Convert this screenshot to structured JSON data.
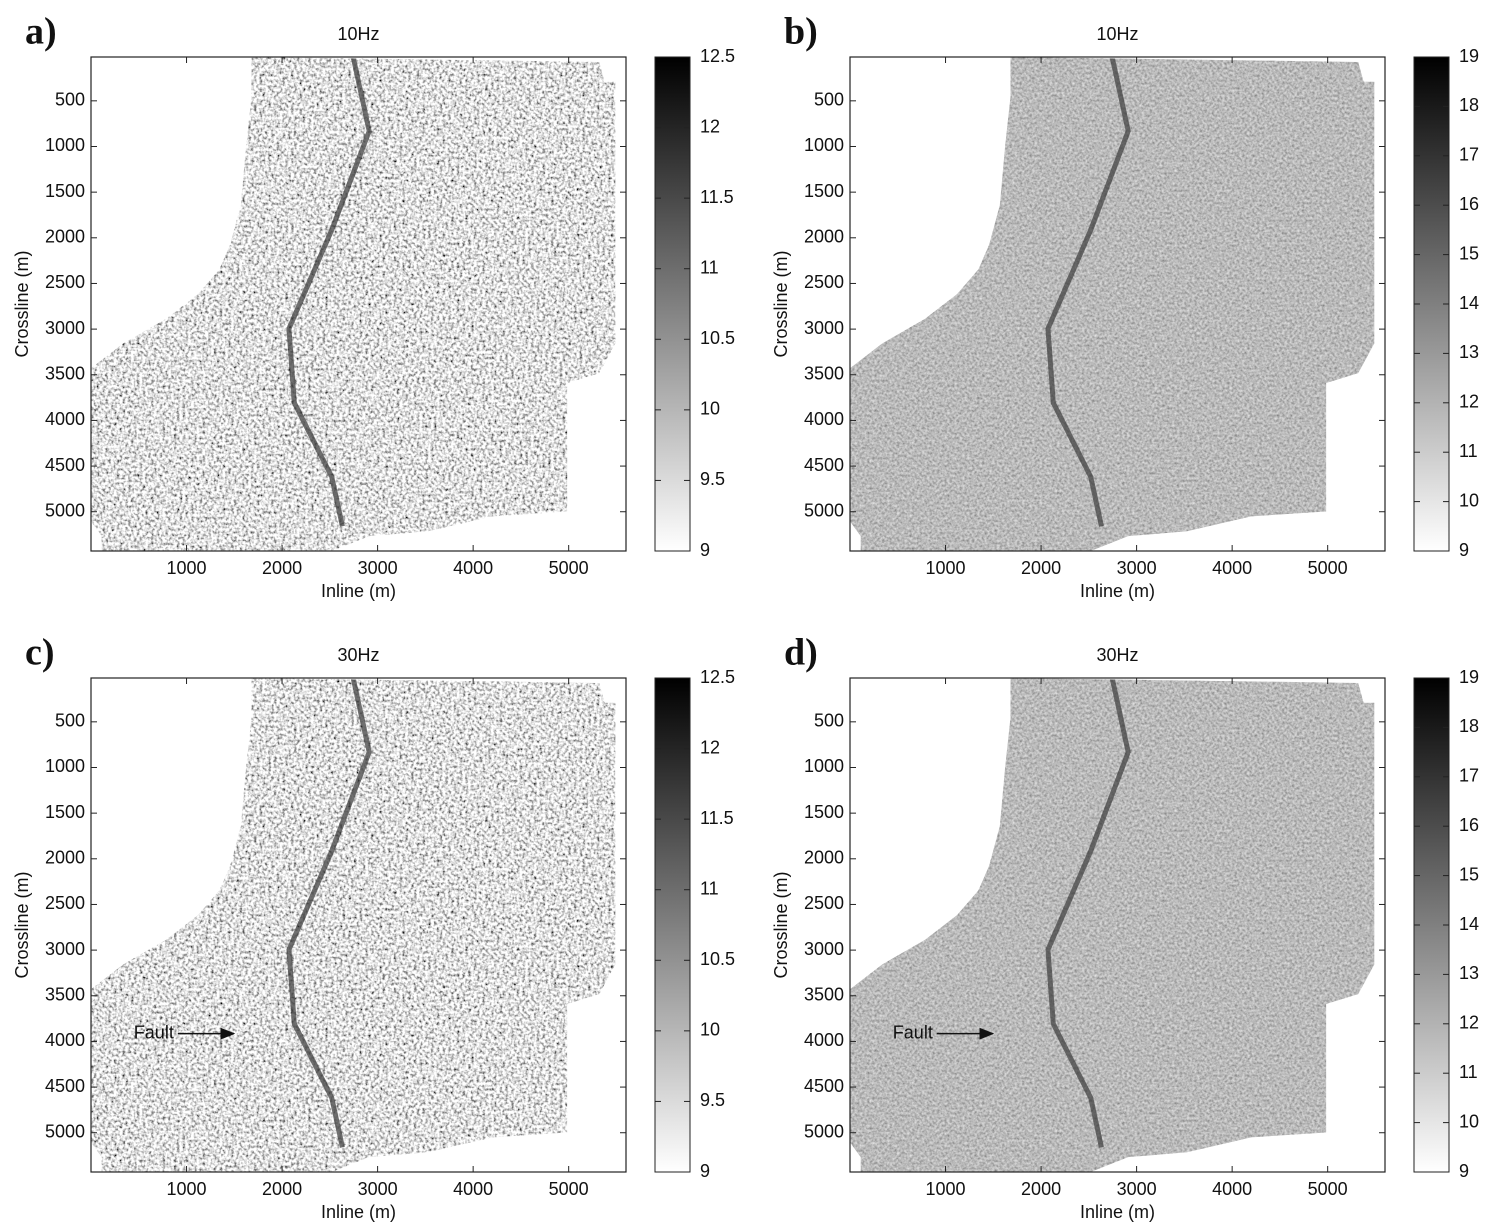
{
  "chart_data": [
    {
      "type": "heatmap",
      "panel_label": "a)",
      "title": "10Hz",
      "xlabel": "Inline (m)",
      "ylabel": "Crossline (m)",
      "xlim": [
        0,
        5600
      ],
      "xticks": [
        1000,
        2000,
        3000,
        4000,
        5000
      ],
      "ylim": [
        20,
        5430
      ],
      "yticks": [
        500,
        1000,
        1500,
        2000,
        2500,
        3000,
        3500,
        4000,
        4500,
        5000
      ],
      "yreverse": true,
      "colormap": "gray_r",
      "clim": [
        9,
        12.5
      ],
      "cticks": [
        9,
        9.5,
        10,
        10.5,
        11,
        11.5,
        12,
        12.5
      ]
    },
    {
      "type": "heatmap",
      "panel_label": "b)",
      "title": "10Hz",
      "xlabel": "Inline (m)",
      "ylabel": "Crossline (m)",
      "xlim": [
        0,
        5600
      ],
      "xticks": [
        1000,
        2000,
        3000,
        4000,
        5000
      ],
      "ylim": [
        20,
        5430
      ],
      "yticks": [
        500,
        1000,
        1500,
        2000,
        2500,
        3000,
        3500,
        4000,
        4500,
        5000
      ],
      "yreverse": true,
      "colormap": "gray_r",
      "clim": [
        9,
        19
      ],
      "cticks": [
        9,
        10,
        11,
        12,
        13,
        14,
        15,
        16,
        17,
        18,
        19
      ]
    },
    {
      "type": "heatmap",
      "panel_label": "c)",
      "title": "30Hz",
      "xlabel": "Inline (m)",
      "ylabel": "Crossline (m)",
      "xlim": [
        0,
        5600
      ],
      "xticks": [
        1000,
        2000,
        3000,
        4000,
        5000
      ],
      "ylim": [
        20,
        5430
      ],
      "yticks": [
        500,
        1000,
        1500,
        2000,
        2500,
        3000,
        3500,
        4000,
        4500,
        5000
      ],
      "yreverse": true,
      "colormap": "gray_r",
      "clim": [
        9,
        12.5
      ],
      "cticks": [
        9,
        9.5,
        10,
        10.5,
        11,
        11.5,
        12,
        12.5
      ],
      "annotation": "Fault"
    },
    {
      "type": "heatmap",
      "panel_label": "d)",
      "title": "30Hz",
      "xlabel": "Inline (m)",
      "ylabel": "Crossline (m)",
      "xlim": [
        0,
        5600
      ],
      "xticks": [
        1000,
        2000,
        3000,
        4000,
        5000
      ],
      "ylim": [
        20,
        5430
      ],
      "yticks": [
        500,
        1000,
        1500,
        2000,
        2500,
        3000,
        3500,
        4000,
        4500,
        5000
      ],
      "yreverse": true,
      "colormap": "gray_r",
      "clim": [
        9,
        19
      ],
      "cticks": [
        9,
        10,
        11,
        12,
        13,
        14,
        15,
        16,
        17,
        18,
        19
      ],
      "annotation": "Fault"
    }
  ]
}
